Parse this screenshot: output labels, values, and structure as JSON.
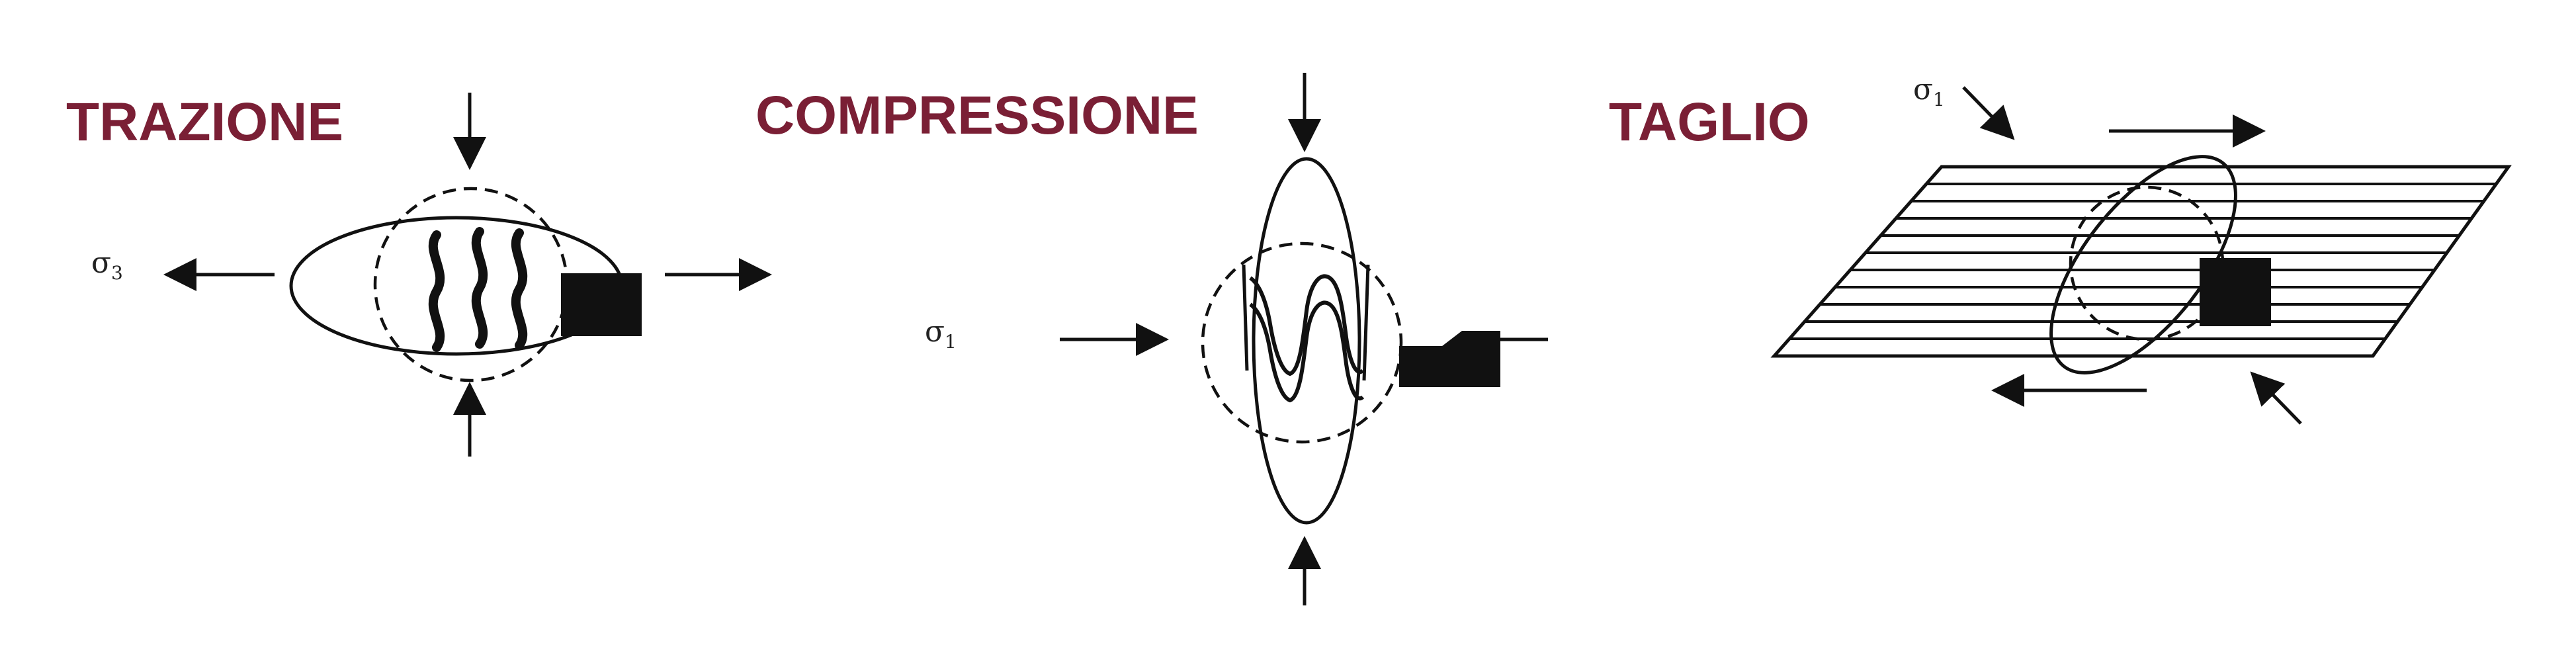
{
  "panels": [
    {
      "title": "TRAZIONE",
      "sigma_label": "σ",
      "sigma_sub": "3"
    },
    {
      "title": "COMPRESSIONE",
      "sigma_label": "σ",
      "sigma_sub": "1"
    },
    {
      "title": "TAGLIO",
      "sigma_label": "σ",
      "sigma_sub": "1"
    }
  ],
  "colors": {
    "title": "#7a1f35",
    "ink": "#111111"
  }
}
